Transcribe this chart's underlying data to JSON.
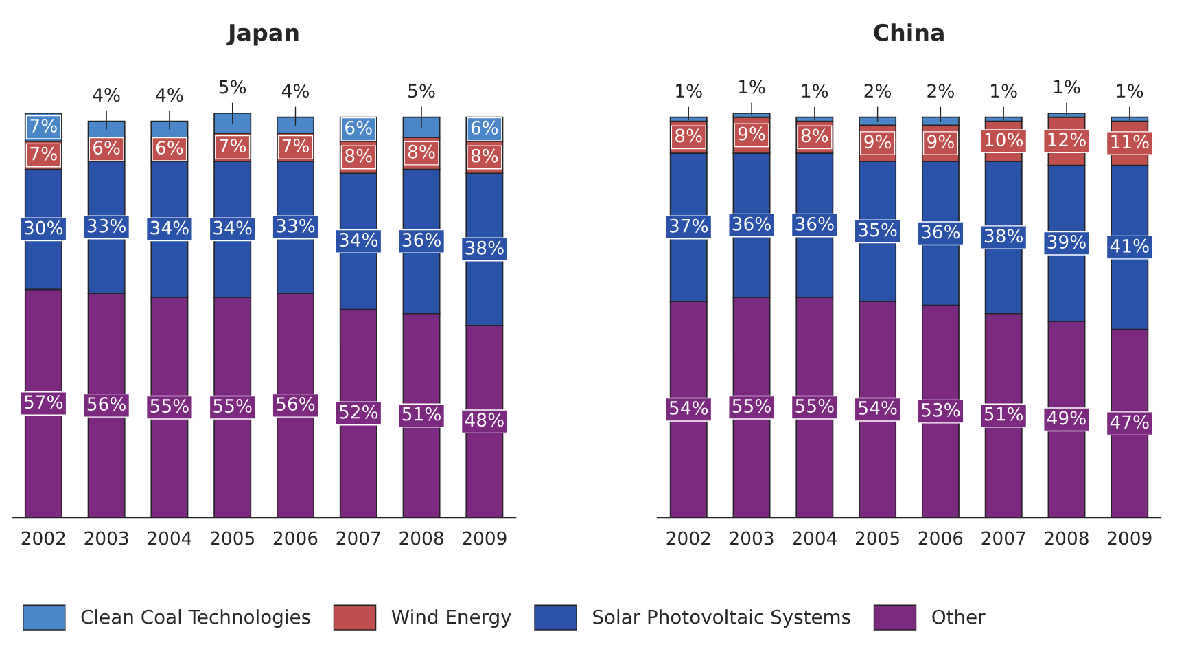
{
  "chart_data": [
    {
      "type": "bar",
      "title": "Japan",
      "stacked": true,
      "legend": "bottom",
      "categories": [
        "2002",
        "2003",
        "2004",
        "2005",
        "2006",
        "2007",
        "2008",
        "2009"
      ],
      "series": [
        {
          "name": "Other",
          "color": "#7b2a7f",
          "values": [
            57,
            56,
            55,
            55,
            56,
            52,
            51,
            48
          ],
          "value_labels": [
            "57%",
            "56%",
            "55%",
            "55%",
            "56%",
            "52%",
            "51%",
            "48%"
          ]
        },
        {
          "name": "Solar Photovoltaic Systems",
          "color": "#2a52a8",
          "values": [
            30,
            33,
            34,
            34,
            33,
            34,
            36,
            38
          ],
          "value_labels": [
            "30%",
            "33%",
            "34%",
            "34%",
            "33%",
            "34%",
            "36%",
            "38%"
          ]
        },
        {
          "name": "Wind Energy",
          "color": "#c0504d",
          "values": [
            7,
            6,
            6,
            7,
            7,
            8,
            8,
            8
          ],
          "value_labels": [
            "7%",
            "6%",
            "6%",
            "7%",
            "7%",
            "8%",
            "8%",
            "8%"
          ]
        },
        {
          "name": "Clean Coal Technologies",
          "color": "#4a86c8",
          "values": [
            7,
            4,
            4,
            5,
            4,
            6,
            5,
            6
          ],
          "value_labels": [
            "7%",
            "4%",
            "4%",
            "5%",
            "4%",
            "6%",
            "5%",
            "6%"
          ]
        }
      ]
    },
    {
      "type": "bar",
      "title": "China",
      "stacked": true,
      "categories": [
        "2002",
        "2003",
        "2004",
        "2005",
        "2006",
        "2007",
        "2008",
        "2009"
      ],
      "series": [
        {
          "color": "#7b2a7f",
          "values": [
            54,
            55,
            55,
            54,
            53,
            51,
            49,
            47
          ],
          "value_labels": [
            "54%",
            "55%",
            "55%",
            "54%",
            "53%",
            "51%",
            "49%",
            "47%"
          ]
        },
        {
          "color": "#2a52a8",
          "values": [
            37,
            36,
            36,
            35,
            36,
            38,
            39,
            41
          ],
          "value_labels": [
            "37%",
            "36%",
            "36%",
            "35%",
            "36%",
            "38%",
            "39%",
            "41%"
          ]
        },
        {
          "color": "#c0504d",
          "values": [
            8,
            9,
            8,
            9,
            9,
            10,
            12,
            11
          ],
          "value_labels": [
            "8%",
            "9%",
            "8%",
            "9%",
            "9%",
            "10%",
            "12%",
            "11%"
          ]
        },
        {
          "color": "#4a86c8",
          "values": [
            1,
            1,
            1,
            2,
            2,
            1,
            1,
            1
          ],
          "value_labels": [
            "1%",
            "1%",
            "1%",
            "2%",
            "2%",
            "1%",
            "1%",
            "1%"
          ]
        }
      ]
    }
  ]
}
